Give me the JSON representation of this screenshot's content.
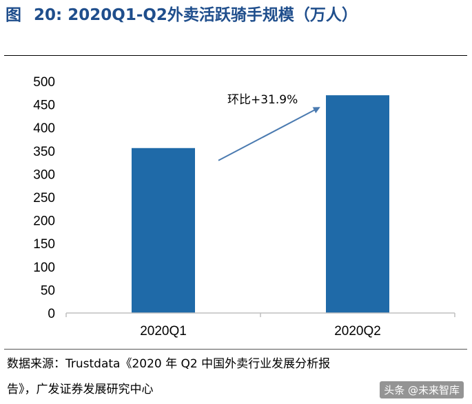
{
  "figure": {
    "label": "图",
    "number": "20:",
    "title": "2020Q1-Q2外卖活跃骑手规模（万人）"
  },
  "source": {
    "line1": "数据来源：Trustdata《2020 年 Q2 中国外卖行业发展分析报",
    "line2": "告》，广发证券发展研究中心"
  },
  "watermark": "头条 @未来智库",
  "colors": {
    "bar": "#1f6aa8",
    "title": "#1f4e8c",
    "arrow": "#4a7ab0"
  },
  "chart_data": {
    "type": "bar",
    "categories": [
      "2020Q1",
      "2020Q2"
    ],
    "values": [
      356,
      470
    ],
    "ylim": [
      0,
      500
    ],
    "yticks": [
      0,
      50,
      100,
      150,
      200,
      250,
      300,
      350,
      400,
      450,
      500
    ],
    "grid": false,
    "annotation": {
      "text": "环比+31.9%"
    }
  }
}
